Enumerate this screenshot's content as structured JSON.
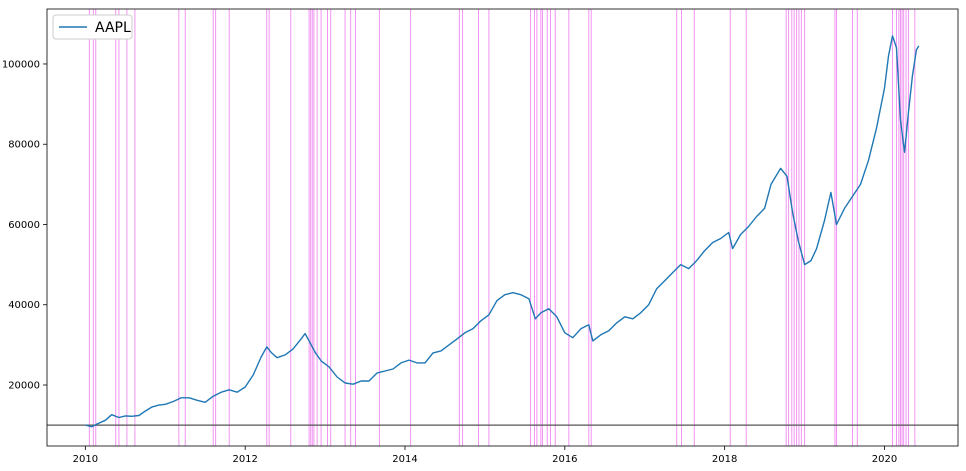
{
  "chart_data": {
    "type": "line",
    "title": "",
    "xlabel": "",
    "ylabel": "",
    "xlim": [
      2009.52,
      2020.92
    ],
    "ylim": [
      4800,
      113700
    ],
    "x_ticks": [
      2010,
      2012,
      2014,
      2016,
      2018,
      2020
    ],
    "y_ticks": [
      20000,
      40000,
      60000,
      80000,
      100000
    ],
    "x_tick_labels": [
      "2010",
      "2012",
      "2014",
      "2016",
      "2018",
      "2020"
    ],
    "y_tick_labels": [
      "20000",
      "40000",
      "60000",
      "80000",
      "100000"
    ],
    "grid": false,
    "legend": {
      "placement": "top-left",
      "entries": [
        "AAPL"
      ]
    },
    "colors": {
      "series": "#1f77b4",
      "event_lines": "#ee82ee",
      "baseline": "#555555"
    },
    "series": [
      {
        "name": "AAPL",
        "points": [
          [
            2010.0,
            10000
          ],
          [
            2010.08,
            9600
          ],
          [
            2010.15,
            10300
          ],
          [
            2010.25,
            11200
          ],
          [
            2010.33,
            12600
          ],
          [
            2010.42,
            11900
          ],
          [
            2010.5,
            12300
          ],
          [
            2010.58,
            12200
          ],
          [
            2010.67,
            12400
          ],
          [
            2010.75,
            13500
          ],
          [
            2010.83,
            14500
          ],
          [
            2010.92,
            15000
          ],
          [
            2011.0,
            15200
          ],
          [
            2011.1,
            15900
          ],
          [
            2011.2,
            16800
          ],
          [
            2011.3,
            16800
          ],
          [
            2011.4,
            16200
          ],
          [
            2011.5,
            15700
          ],
          [
            2011.6,
            17200
          ],
          [
            2011.7,
            18200
          ],
          [
            2011.8,
            18800
          ],
          [
            2011.9,
            18200
          ],
          [
            2012.0,
            19500
          ],
          [
            2012.1,
            22500
          ],
          [
            2012.2,
            27000
          ],
          [
            2012.27,
            29500
          ],
          [
            2012.33,
            28000
          ],
          [
            2012.4,
            26800
          ],
          [
            2012.5,
            27500
          ],
          [
            2012.6,
            29000
          ],
          [
            2012.7,
            31500
          ],
          [
            2012.75,
            32800
          ],
          [
            2012.8,
            31000
          ],
          [
            2012.88,
            28000
          ],
          [
            2012.95,
            26000
          ],
          [
            2013.05,
            24500
          ],
          [
            2013.15,
            22000
          ],
          [
            2013.25,
            20500
          ],
          [
            2013.35,
            20200
          ],
          [
            2013.45,
            21000
          ],
          [
            2013.55,
            21000
          ],
          [
            2013.65,
            23000
          ],
          [
            2013.75,
            23500
          ],
          [
            2013.85,
            24000
          ],
          [
            2013.95,
            25500
          ],
          [
            2014.05,
            26200
          ],
          [
            2014.15,
            25500
          ],
          [
            2014.25,
            25500
          ],
          [
            2014.35,
            28000
          ],
          [
            2014.45,
            28500
          ],
          [
            2014.55,
            30000
          ],
          [
            2014.65,
            31500
          ],
          [
            2014.75,
            33000
          ],
          [
            2014.85,
            34000
          ],
          [
            2014.95,
            36000
          ],
          [
            2015.05,
            37500
          ],
          [
            2015.15,
            41000
          ],
          [
            2015.25,
            42500
          ],
          [
            2015.35,
            43000
          ],
          [
            2015.45,
            42500
          ],
          [
            2015.55,
            41500
          ],
          [
            2015.63,
            36500
          ],
          [
            2015.7,
            38000
          ],
          [
            2015.8,
            39000
          ],
          [
            2015.9,
            37000
          ],
          [
            2016.0,
            33000
          ],
          [
            2016.1,
            31800
          ],
          [
            2016.2,
            34000
          ],
          [
            2016.3,
            35000
          ],
          [
            2016.35,
            31000
          ],
          [
            2016.45,
            32500
          ],
          [
            2016.55,
            33500
          ],
          [
            2016.65,
            35500
          ],
          [
            2016.75,
            37000
          ],
          [
            2016.85,
            36500
          ],
          [
            2016.95,
            38000
          ],
          [
            2017.05,
            40000
          ],
          [
            2017.15,
            44000
          ],
          [
            2017.25,
            46000
          ],
          [
            2017.35,
            48000
          ],
          [
            2017.45,
            50000
          ],
          [
            2017.55,
            49000
          ],
          [
            2017.65,
            51000
          ],
          [
            2017.75,
            53500
          ],
          [
            2017.85,
            55500
          ],
          [
            2017.95,
            56500
          ],
          [
            2018.05,
            58000
          ],
          [
            2018.1,
            54000
          ],
          [
            2018.2,
            57500
          ],
          [
            2018.3,
            59500
          ],
          [
            2018.4,
            62000
          ],
          [
            2018.5,
            64000
          ],
          [
            2018.58,
            70000
          ],
          [
            2018.7,
            74000
          ],
          [
            2018.78,
            72000
          ],
          [
            2018.85,
            63000
          ],
          [
            2018.92,
            56000
          ],
          [
            2019.0,
            50000
          ],
          [
            2019.08,
            51000
          ],
          [
            2019.15,
            54000
          ],
          [
            2019.25,
            61000
          ],
          [
            2019.33,
            68000
          ],
          [
            2019.4,
            60000
          ],
          [
            2019.5,
            64000
          ],
          [
            2019.6,
            67000
          ],
          [
            2019.7,
            70000
          ],
          [
            2019.8,
            76000
          ],
          [
            2019.9,
            84000
          ],
          [
            2020.0,
            94000
          ],
          [
            2020.05,
            102000
          ],
          [
            2020.1,
            107000
          ],
          [
            2020.15,
            104000
          ],
          [
            2020.2,
            86000
          ],
          [
            2020.25,
            78000
          ],
          [
            2020.3,
            88000
          ],
          [
            2020.35,
            97000
          ],
          [
            2020.4,
            103500
          ],
          [
            2020.43,
            104500
          ]
        ]
      }
    ],
    "event_lines": [
      2010.05,
      2010.1,
      2010.13,
      2010.38,
      2010.42,
      2010.52,
      2010.62,
      2011.17,
      2011.25,
      2011.6,
      2011.63,
      2011.8,
      2012.27,
      2012.3,
      2012.57,
      2012.8,
      2012.82,
      2012.84,
      2012.86,
      2012.9,
      2012.95,
      2013.03,
      2013.07,
      2013.25,
      2013.32,
      2013.38,
      2013.68,
      2014.07,
      2014.68,
      2014.72,
      2014.92,
      2015.05,
      2015.57,
      2015.62,
      2015.65,
      2015.7,
      2015.72,
      2015.78,
      2015.82,
      2015.88,
      2016.05,
      2016.3,
      2016.33,
      2017.4,
      2017.46,
      2017.62,
      2018.07,
      2018.27,
      2018.77,
      2018.8,
      2018.84,
      2018.87,
      2018.9,
      2018.93,
      2018.96,
      2019.0,
      2019.38,
      2019.4,
      2019.6,
      2019.66,
      2020.1,
      2020.15,
      2020.18,
      2020.2,
      2020.22,
      2020.24,
      2020.27,
      2020.3,
      2020.38
    ],
    "baseline": 10000
  }
}
